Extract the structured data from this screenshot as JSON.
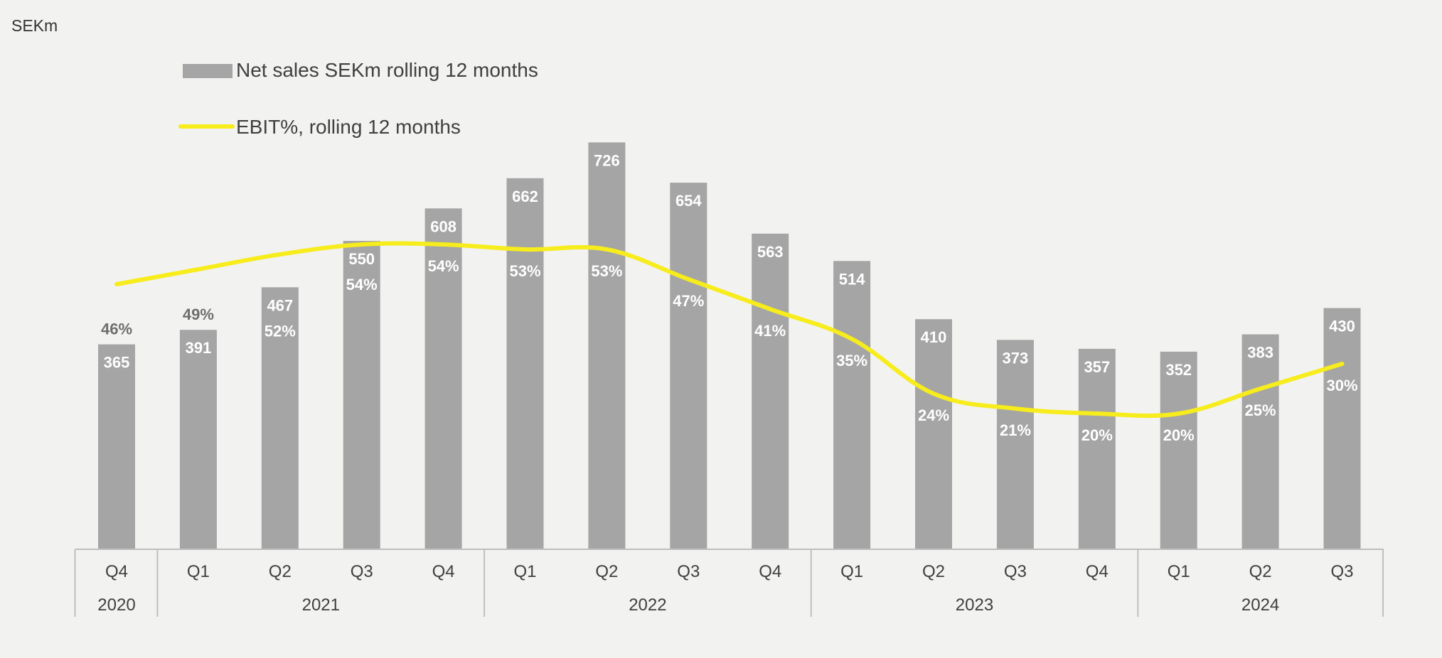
{
  "unit_label": "SEKm",
  "chart_data": {
    "type": "bar",
    "categories": [
      "Q4 2020",
      "Q1 2021",
      "Q2 2021",
      "Q3 2021",
      "Q4 2021",
      "Q1 2022",
      "Q2 2022",
      "Q3 2022",
      "Q4 2022",
      "Q1 2023",
      "Q2 2023",
      "Q3 2023",
      "Q4 2023",
      "Q1 2024",
      "Q2 2024",
      "Q3 2024"
    ],
    "quarters": [
      "Q4",
      "Q1",
      "Q2",
      "Q3",
      "Q4",
      "Q1",
      "Q2",
      "Q3",
      "Q4",
      "Q1",
      "Q2",
      "Q3",
      "Q4",
      "Q1",
      "Q2",
      "Q3"
    ],
    "years": [
      {
        "label": "2020",
        "count": 1
      },
      {
        "label": "2021",
        "count": 4
      },
      {
        "label": "2022",
        "count": 4
      },
      {
        "label": "2023",
        "count": 4
      },
      {
        "label": "2024",
        "count": 3
      }
    ],
    "series": [
      {
        "name": "Net sales SEKm rolling 12 months",
        "type": "bar",
        "color": "#a5a5a5",
        "values": [
          365,
          391,
          467,
          550,
          608,
          662,
          726,
          654,
          563,
          514,
          410,
          373,
          357,
          352,
          383,
          430
        ],
        "labels": [
          "365",
          "391",
          "467",
          "550",
          "608",
          "662",
          "726",
          "654",
          "563",
          "514",
          "410",
          "373",
          "357",
          "352",
          "383",
          "430"
        ]
      },
      {
        "name": "EBIT%, rolling 12 months",
        "type": "line",
        "color": "#f7ec1c",
        "values": [
          46,
          49,
          52,
          54,
          54,
          53,
          53,
          47,
          41,
          35,
          24,
          21,
          20,
          20,
          25,
          30
        ],
        "labels": [
          "46%",
          "49%",
          "52%",
          "54%",
          "54%",
          "53%",
          "53%",
          "47%",
          "41%",
          "35%",
          "24%",
          "21%",
          "20%",
          "20%",
          "25%",
          "30%"
        ]
      }
    ],
    "legend_position": "top-left",
    "grid": false
  }
}
